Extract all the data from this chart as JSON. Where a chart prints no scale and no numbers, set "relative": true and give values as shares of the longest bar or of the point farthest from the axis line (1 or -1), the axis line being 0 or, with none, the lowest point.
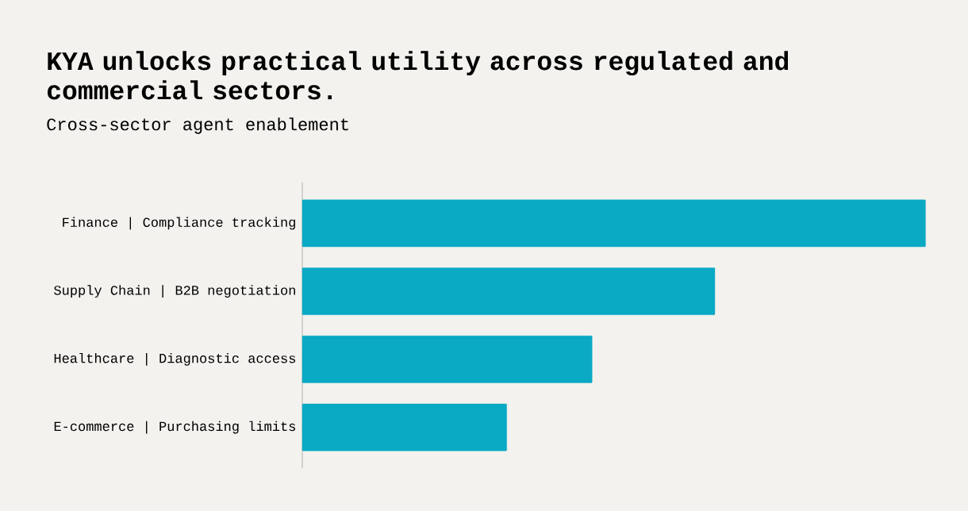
{
  "chart_data": {
    "type": "bar",
    "orientation": "horizontal",
    "relative": true,
    "title": "KYA unlocks practical utility across regulated and commercial sectors.",
    "subtitle": "Cross-sector agent enablement",
    "categories": [
      "Finance | Compliance tracking",
      "Supply Chain | B2B negotiation",
      "Healthcare | Diagnostic access",
      "E-commerce | Purchasing limits"
    ],
    "values": [
      1,
      0.662,
      0.465,
      0.328
    ],
    "color": "#0aa9c4"
  }
}
